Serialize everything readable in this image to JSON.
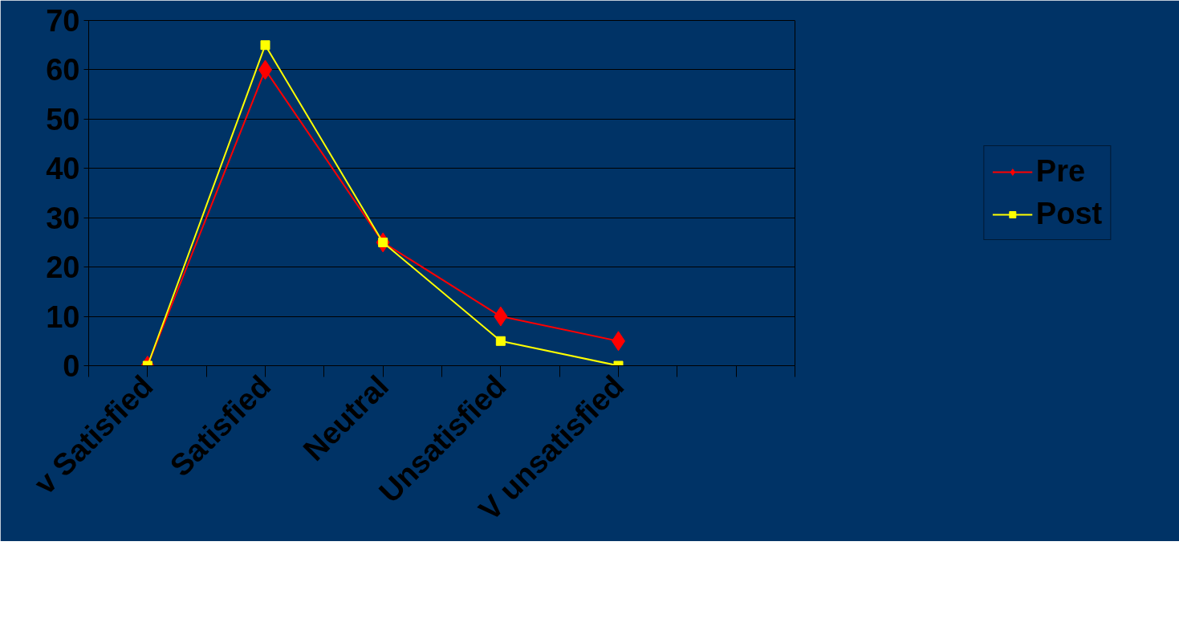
{
  "chart_data": {
    "type": "line",
    "categories": [
      "v Satisfied",
      "Satisfied",
      "Neutral",
      "Unsatisfied",
      "V unsatisfied",
      null
    ],
    "series": [
      {
        "name": "Pre",
        "color": "#ff0000",
        "marker": "diamond",
        "values": [
          0,
          60,
          25,
          10,
          5,
          null
        ]
      },
      {
        "name": "Post",
        "color": "#ffff00",
        "marker": "square",
        "values": [
          0,
          65,
          25,
          5,
          0,
          null
        ]
      }
    ],
    "ylim": [
      0,
      70
    ],
    "yticks": [
      0,
      10,
      20,
      30,
      40,
      50,
      60,
      70
    ],
    "grid": "y",
    "legend": "right",
    "line_style": "solid"
  }
}
